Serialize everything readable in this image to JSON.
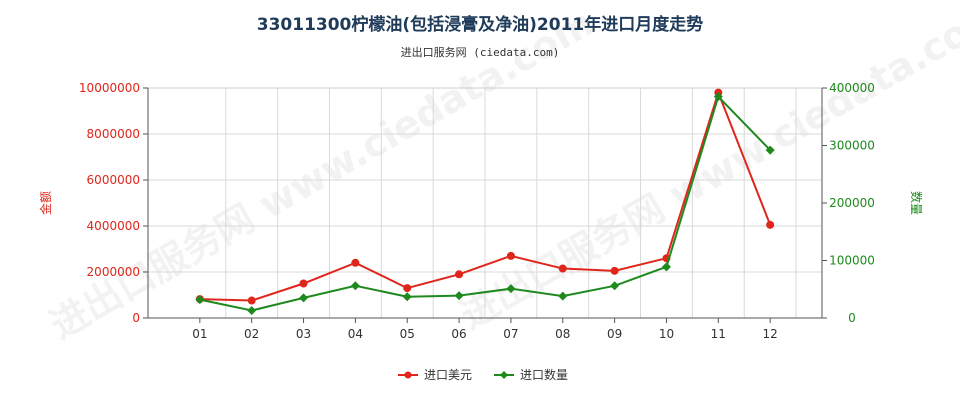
{
  "chart_data": {
    "type": "line",
    "title": "33011300柠檬油(包括浸膏及净油)2011年进口月度走势",
    "subtitle": "进出口服务网 (ciedata.com)",
    "watermark": "进出口服务网 www.ciedata.com",
    "categories": [
      "01",
      "02",
      "03",
      "04",
      "05",
      "06",
      "07",
      "08",
      "09",
      "10",
      "11",
      "12"
    ],
    "y_left": {
      "label": "金额",
      "min": 0,
      "max": 10000000,
      "ticks": [
        "0",
        "2000000",
        "4000000",
        "6000000",
        "8000000",
        "10000000"
      ]
    },
    "y_right": {
      "label": "数量",
      "min": 0,
      "max": 400000,
      "ticks": [
        "0",
        "100000",
        "200000",
        "300000",
        "400000"
      ]
    },
    "grid": true,
    "legend_position": "bottom",
    "series": [
      {
        "name": "进口美元",
        "axis": "left",
        "color": "#e0261b",
        "marker": "circle",
        "values": [
          820000,
          760000,
          1500000,
          2400000,
          1300000,
          1900000,
          2700000,
          2150000,
          2050000,
          2600000,
          9800000,
          4050000
        ]
      },
      {
        "name": "进口数量",
        "axis": "right",
        "color": "#1e8a1e",
        "marker": "diamond",
        "values": [
          32000,
          13000,
          35000,
          56000,
          37000,
          39000,
          51000,
          38000,
          56000,
          89000,
          385000,
          292000
        ]
      }
    ]
  }
}
